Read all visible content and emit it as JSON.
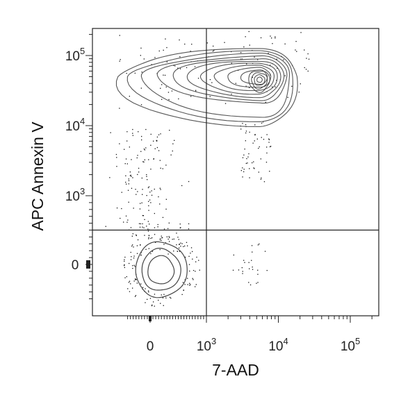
{
  "chart_data": {
    "type": "scatter",
    "subtype": "flow-cytometry-contour-with-dots",
    "xlabel": "7-AAD",
    "ylabel": "APC Annexin V",
    "x_scale": "biexponential",
    "y_scale": "biexponential",
    "x_ticks": [
      {
        "value": 0,
        "base": "0",
        "exp": ""
      },
      {
        "value": 1000,
        "base": "10",
        "exp": "3"
      },
      {
        "value": 10000,
        "base": "10",
        "exp": "4"
      },
      {
        "value": 100000,
        "base": "10",
        "exp": "5"
      }
    ],
    "y_ticks": [
      {
        "value": 0,
        "base": "0",
        "exp": ""
      },
      {
        "value": 1000,
        "base": "10",
        "exp": "3"
      },
      {
        "value": 10000,
        "base": "10",
        "exp": "4"
      },
      {
        "value": 100000,
        "base": "10",
        "exp": "5"
      }
    ],
    "quadrant_gate": {
      "x": 1000,
      "y": 500
    },
    "populations": [
      {
        "id": "annexin-positive",
        "center_x": 5500,
        "center_y": 50000,
        "contour_levels": 10
      },
      {
        "id": "double-negative",
        "center_x": 50,
        "center_y": -40,
        "contour_levels": 3
      }
    ],
    "grid": false,
    "legend": "none"
  }
}
